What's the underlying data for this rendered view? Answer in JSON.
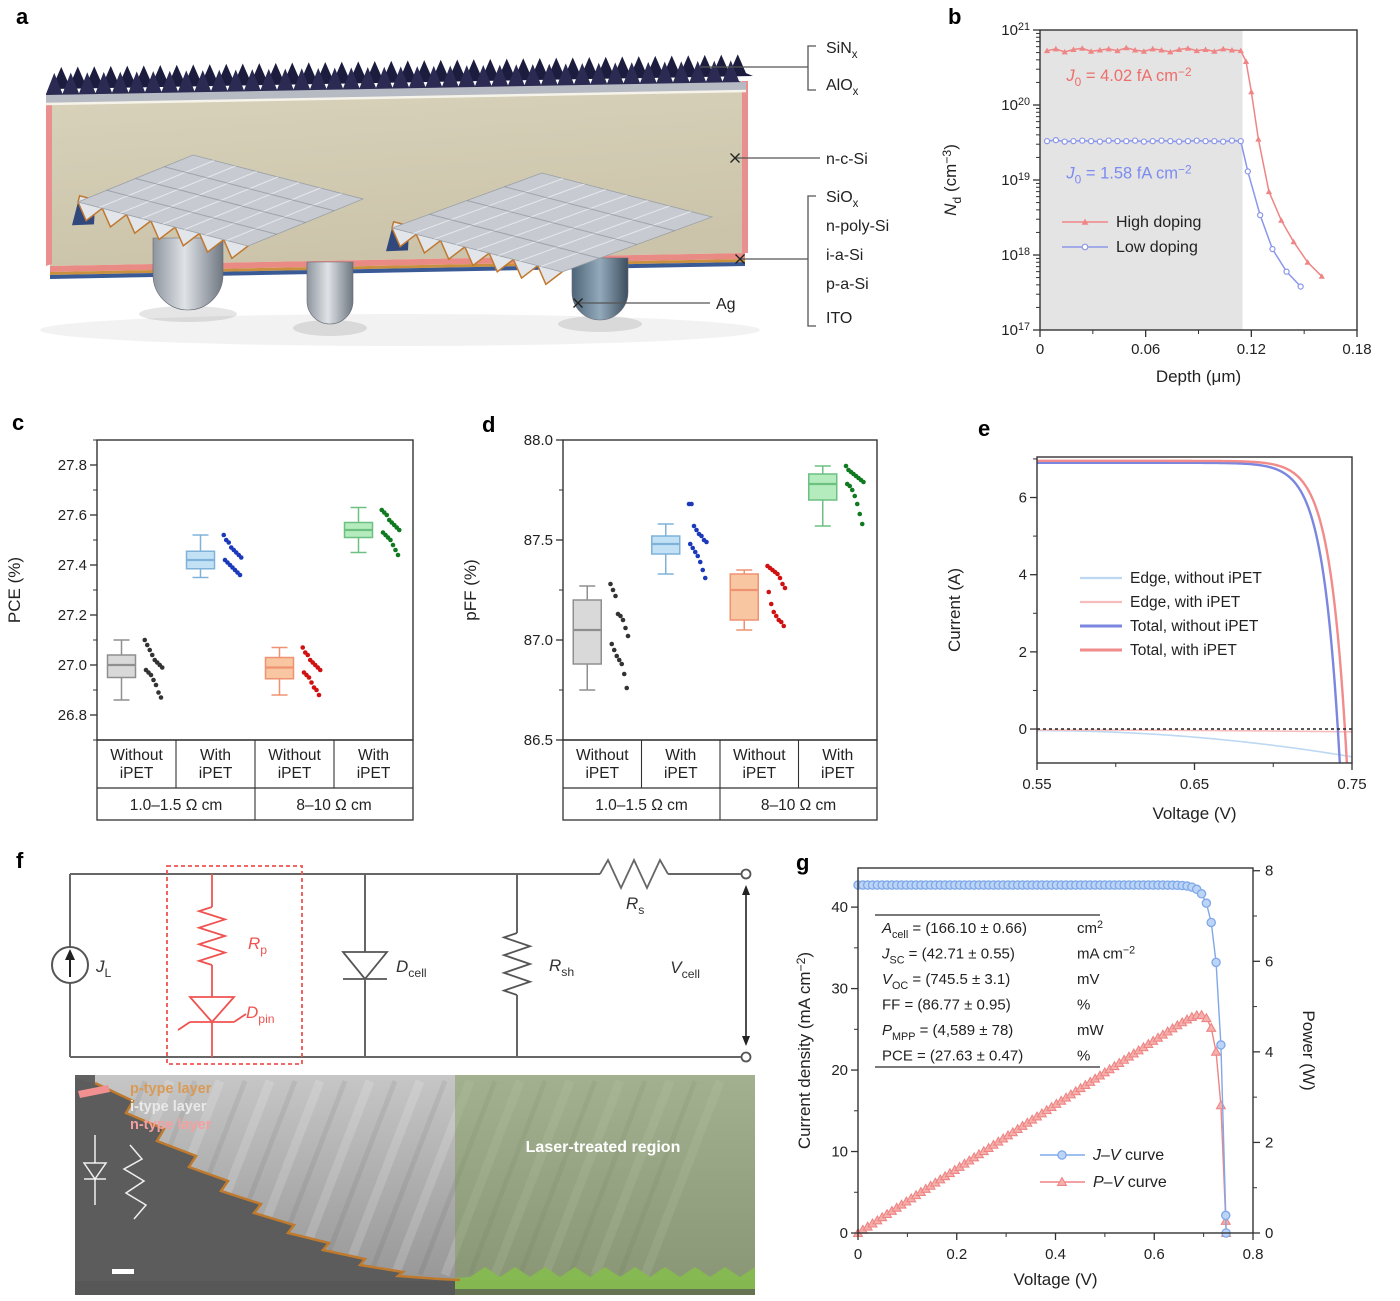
{
  "panels": {
    "a": "a",
    "b": "b",
    "c": "c",
    "d": "d",
    "e": "e",
    "f": "f",
    "g": "g"
  },
  "panel_a": {
    "bracket_top_labels": [
      "SiN_{x}",
      "AlO_{x}"
    ],
    "mid_label": "n-c-Si",
    "bracket_bottom_labels": [
      "SiO_{x}",
      "n-poly-Si",
      "i-a-Si",
      "p-a-Si",
      "ITO"
    ],
    "ag_label": "Ag"
  },
  "chart_data": [
    {
      "id": "b",
      "type": "line",
      "xlabel": "Depth (μm)",
      "ylabel": "*N*_{d} (cm^{−3})",
      "xlim": [
        0,
        0.18
      ],
      "x_tick_vals": [
        0,
        0.06,
        0.12,
        0.18
      ],
      "x_tick_labels": [
        "0",
        "0.06",
        "0.12",
        "0.18"
      ],
      "x_minor_vals": [
        0.03,
        0.09,
        0.15
      ],
      "yscale": "log",
      "ylim_exp": [
        17,
        21
      ],
      "y_tick_labels": [
        "10^{17}",
        "10^{18}",
        "10^{19}",
        "10^{20}",
        "10^{21}"
      ],
      "shaded_region": {
        "x0": 0,
        "x1": 0.115,
        "color": "#e4e4e4"
      },
      "annotations": [
        {
          "text": "*J*_{0} = 4.02 fA cm^{−2}",
          "color": "#ed6e6b",
          "x": 0.015,
          "y": 2.1e+20
        },
        {
          "text": "*J*_{0} = 1.58 fA cm^{−2}",
          "color": "#7c8bf0",
          "x": 0.015,
          "y": 1.05e+19
        }
      ],
      "legend_position": "inside-lower-left",
      "series": [
        {
          "name": "High doping",
          "color": "#ef8585",
          "marker": "triangle",
          "x": [
            0.004,
            0.009,
            0.014,
            0.019,
            0.024,
            0.029,
            0.034,
            0.039,
            0.044,
            0.049,
            0.054,
            0.059,
            0.064,
            0.069,
            0.074,
            0.079,
            0.084,
            0.089,
            0.094,
            0.099,
            0.104,
            0.109,
            0.114,
            0.117,
            0.12,
            0.124,
            0.13,
            0.137,
            0.144,
            0.152,
            0.16
          ],
          "y": [
            5.3e+20,
            5.6e+20,
            5.1e+20,
            5.5e+20,
            5.7e+20,
            5.2e+20,
            5.4e+20,
            5.6e+20,
            5.3e+20,
            5.8e+20,
            5.4e+20,
            5.2e+20,
            5.6e+20,
            5.4e+20,
            5.1e+20,
            5.5e+20,
            5.7e+20,
            5.3e+20,
            5.5e+20,
            5.2e+20,
            5.6e+20,
            5.4e+20,
            5.3e+20,
            3.8e+20,
            1.5e+20,
            3.5e+19,
            7e+18,
            2.9e+18,
            1.5e+18,
            8e+17,
            5.2e+17
          ]
        },
        {
          "name": "Low doping",
          "color": "#8b97ea",
          "marker": "circle",
          "x": [
            0.004,
            0.009,
            0.014,
            0.019,
            0.024,
            0.029,
            0.034,
            0.039,
            0.044,
            0.049,
            0.054,
            0.059,
            0.064,
            0.069,
            0.074,
            0.079,
            0.084,
            0.089,
            0.094,
            0.099,
            0.104,
            0.109,
            0.114,
            0.118,
            0.125,
            0.132,
            0.14,
            0.148
          ],
          "y": [
            3.3e+19,
            3.4e+19,
            3.25e+19,
            3.3e+19,
            3.35e+19,
            3.3e+19,
            3.25e+19,
            3.35e+19,
            3.3e+19,
            3.3e+19,
            3.35e+19,
            3.25e+19,
            3.3e+19,
            3.35e+19,
            3.3e+19,
            3.25e+19,
            3.3e+19,
            3.35e+19,
            3.3e+19,
            3.3e+19,
            3.25e+19,
            3.35e+19,
            3.3e+19,
            1.3e+19,
            3.4e+18,
            1.2e+18,
            6e+17,
            3.8e+17
          ]
        }
      ]
    },
    {
      "id": "c",
      "type": "box",
      "ylabel": "PCE (%)",
      "ylim": [
        26.7,
        27.9
      ],
      "y_tick_vals": [
        26.8,
        27.0,
        27.2,
        27.4,
        27.6,
        27.8
      ],
      "y_tick_labels": [
        "26.8",
        "27.0",
        "27.2",
        "27.4",
        "27.6",
        "27.8"
      ],
      "y_minor_step": 0.1,
      "groups": [
        {
          "label": "Without iPET",
          "fill": "#d9d9d9",
          "stroke": "#8f8f8f",
          "dot": "#333333",
          "box": {
            "low": 26.86,
            "q1": 26.95,
            "median": 27.0,
            "q3": 27.04,
            "high": 27.1
          },
          "points": [
            27.1,
            27.08,
            27.06,
            27.04,
            27.02,
            27.01,
            27.0,
            26.99,
            26.98,
            26.97,
            26.96,
            26.94,
            26.92,
            26.89,
            26.87
          ]
        },
        {
          "label": "With iPET",
          "fill": "#c3e1f5",
          "stroke": "#7fb2d9",
          "dot": "#1c39bb",
          "box": {
            "low": 27.35,
            "q1": 27.385,
            "median": 27.42,
            "q3": 27.455,
            "high": 27.52
          },
          "points": [
            27.52,
            27.5,
            27.49,
            27.47,
            27.46,
            27.45,
            27.44,
            27.43,
            27.42,
            27.41,
            27.4,
            27.39,
            27.38,
            27.37,
            27.36
          ]
        },
        {
          "label": "Without iPET",
          "fill": "#f9c6a2",
          "stroke": "#ef9272",
          "dot": "#d01111",
          "box": {
            "low": 26.88,
            "q1": 26.945,
            "median": 26.99,
            "q3": 27.03,
            "high": 27.07
          },
          "points": [
            27.07,
            27.05,
            27.04,
            27.02,
            27.01,
            27.0,
            26.99,
            26.98,
            26.97,
            26.96,
            26.95,
            26.93,
            26.91,
            26.9,
            26.88
          ]
        },
        {
          "label": "With iPET",
          "fill": "#b4ecbe",
          "stroke": "#6cc080",
          "dot": "#0f7a1f",
          "box": {
            "low": 27.45,
            "q1": 27.51,
            "median": 27.54,
            "q3": 27.57,
            "high": 27.63
          },
          "points": [
            27.62,
            27.61,
            27.6,
            27.58,
            27.57,
            27.56,
            27.55,
            27.54,
            27.53,
            27.52,
            27.51,
            27.5,
            27.48,
            27.46,
            27.44
          ]
        }
      ],
      "group_row_labels": [
        "1.0–1.5 Ω cm",
        "8–10 Ω cm"
      ]
    },
    {
      "id": "d",
      "type": "box",
      "ylabel": "pFF (%)",
      "ylim": [
        86.5,
        88.0
      ],
      "y_tick_vals": [
        86.5,
        87.0,
        87.5,
        88.0
      ],
      "y_tick_labels": [
        "86.5",
        "87.0",
        "87.5",
        "88.0"
      ],
      "y_minor_step": 0.25,
      "groups": [
        {
          "label": "Without iPET",
          "fill": "#d9d9d9",
          "stroke": "#8f8f8f",
          "dot": "#333333",
          "box": {
            "low": 86.75,
            "q1": 86.88,
            "median": 87.05,
            "q3": 87.2,
            "high": 87.27
          },
          "points": [
            87.28,
            87.25,
            87.22,
            87.13,
            87.12,
            87.1,
            87.06,
            87.02,
            86.98,
            86.95,
            86.92,
            86.9,
            86.88,
            86.83,
            86.76
          ]
        },
        {
          "label": "With iPET",
          "fill": "#c3e1f5",
          "stroke": "#7fb2d9",
          "dot": "#1c39bb",
          "box": {
            "low": 87.33,
            "q1": 87.43,
            "median": 87.48,
            "q3": 87.52,
            "high": 87.58
          },
          "points": [
            87.68,
            87.68,
            87.57,
            87.55,
            87.53,
            87.52,
            87.5,
            87.49,
            87.48,
            87.46,
            87.44,
            87.42,
            87.39,
            87.35,
            87.31
          ]
        },
        {
          "label": "Without iPET",
          "fill": "#f9c6a2",
          "stroke": "#ef9272",
          "dot": "#d01111",
          "box": {
            "low": 87.05,
            "q1": 87.1,
            "median": 87.25,
            "q3": 87.33,
            "high": 87.35
          },
          "points": [
            87.37,
            87.36,
            87.35,
            87.34,
            87.33,
            87.31,
            87.28,
            87.26,
            87.24,
            87.18,
            87.14,
            87.12,
            87.1,
            87.09,
            87.07
          ]
        },
        {
          "label": "With iPET",
          "fill": "#b4ecbe",
          "stroke": "#6cc080",
          "dot": "#0f7a1f",
          "box": {
            "low": 87.57,
            "q1": 87.7,
            "median": 87.78,
            "q3": 87.83,
            "high": 87.87
          },
          "points": [
            87.87,
            87.85,
            87.84,
            87.83,
            87.82,
            87.81,
            87.8,
            87.79,
            87.78,
            87.77,
            87.75,
            87.72,
            87.68,
            87.63,
            87.58
          ]
        }
      ],
      "group_row_labels": [
        "1.0–1.5 Ω cm",
        "8–10 Ω cm"
      ]
    },
    {
      "id": "e",
      "type": "curves",
      "xlabel": "Voltage (V)",
      "ylabel": "Current (A)",
      "xlim": [
        0.55,
        0.75
      ],
      "x_tick_vals": [
        0.55,
        0.65,
        0.75
      ],
      "x_tick_labels": [
        "0.55",
        "0.65",
        "0.75"
      ],
      "x_minor_vals": [
        0.6,
        0.7
      ],
      "ylim": [
        -0.88,
        7.05
      ],
      "y_tick_vals": [
        0,
        2,
        4,
        6
      ],
      "y_tick_labels": [
        "0",
        "2",
        "4",
        "6"
      ],
      "y_minor_vals": [
        1,
        3,
        5,
        7
      ],
      "zero_line": true,
      "series": [
        {
          "name": "Edge, without iPET",
          "color": "#bcd8f2",
          "width": 1.6,
          "model": {
            "kind": "quad",
            "c": -0.04,
            "a": -17,
            "x0": 0.55
          }
        },
        {
          "name": "Edge, with iPET",
          "color": "#f6bdbd",
          "width": 1.6,
          "model": {
            "kind": "quad",
            "c": -0.025,
            "a": -1.2,
            "x0": 0.55
          }
        },
        {
          "name": "Total, without iPET",
          "color": "#7b86e0",
          "width": 2.4,
          "model": {
            "kind": "diode",
            "isc": 6.9,
            "voc": 0.741,
            "vt": 0.0105
          }
        },
        {
          "name": "Total, with iPET",
          "color": "#f28b8b",
          "width": 2.4,
          "model": {
            "kind": "diode",
            "isc": 6.95,
            "voc": 0.7455,
            "vt": 0.0105
          }
        }
      ]
    },
    {
      "id": "g",
      "type": "jv",
      "xlabel": "Voltage (V)",
      "ylabel_left": "Current density (mA cm^{−2})",
      "ylabel_right": "Power (W)",
      "xlim": [
        0,
        0.8
      ],
      "x_tick_vals": [
        0,
        0.2,
        0.4,
        0.6,
        0.8
      ],
      "x_tick_labels": [
        "0",
        "0.2",
        "0.4",
        "0.6",
        "0.8"
      ],
      "ylim_left": [
        0,
        44.8
      ],
      "y_tick_vals_left": [
        0,
        10,
        20,
        30,
        40
      ],
      "y_tick_labels_left": [
        "0",
        "10",
        "20",
        "30",
        "40"
      ],
      "ylim_right": [
        0,
        8.06
      ],
      "y_tick_vals_right": [
        0,
        2,
        4,
        6,
        8
      ],
      "y_tick_labels_right": [
        "0",
        "2",
        "4",
        "6",
        "8"
      ],
      "jv": {
        "name": "*J*–*V* curve",
        "jsc": 42.71,
        "voc": 0.7455,
        "vt": 0.0135,
        "fill": "#bcd4f6",
        "stroke": "#7fa8e8"
      },
      "pv": {
        "name": "*P*–*V* curve",
        "area_cm2": 166.1,
        "fill": "#f6b0ac",
        "stroke": "#ee8484"
      },
      "inset_table": {
        "rows": [
          [
            "*A*_{cell} = (166.10 ± 0.66)",
            "cm^{2}"
          ],
          [
            "*J*_{SC} = (42.71 ± 0.55)",
            "mA cm^{−2}"
          ],
          [
            "*V*_{OC} = (745.5 ± 3.1)",
            "mV"
          ],
          [
            "FF = (86.77 ± 0.95)",
            "%"
          ],
          [
            "*P*_{MPP} = (4,589 ± 78)",
            "mW"
          ],
          [
            "PCE = (27.63 ± 0.47)",
            "%"
          ]
        ]
      }
    }
  ],
  "panel_f": {
    "circuit": {
      "accent": "#ef5350",
      "labels": {
        "jl": "*J*_{L}",
        "rp": "*R*_{p}",
        "dpin": "*D*_{pin}",
        "dcell": "*D*_{cell}",
        "rsh": "*R*_{sh}",
        "rs": "*R*_{s}",
        "vcell": "*V*_{cell}"
      }
    },
    "sem": {
      "labels": {
        "p": "p-type layer",
        "i": "i-type layer",
        "n": "n-type layer",
        "laser": "Laser-treated region"
      },
      "colors": {
        "p": "#d99a55",
        "i": "#e9e9e9",
        "n": "#f5a0a0",
        "laser_text": "#ffffff"
      }
    }
  }
}
